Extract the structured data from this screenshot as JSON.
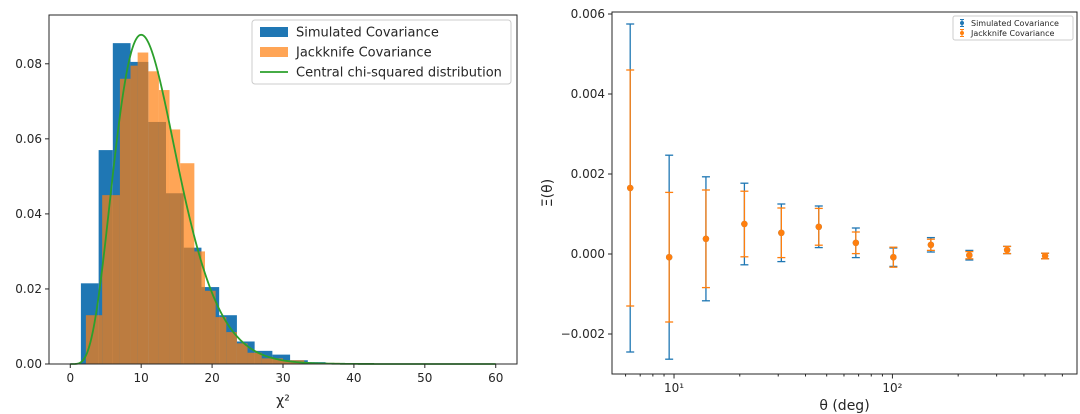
{
  "colors": {
    "simulated": "#1f77b4",
    "jackknife": "#ff7f0e",
    "chi2": "#2ca02c",
    "axis": "#262626"
  },
  "chart_data": [
    {
      "type": "bar",
      "subtype": "histogram",
      "xlabel": "χ²",
      "ylabel": "",
      "xlim": [
        -3,
        63
      ],
      "ylim": [
        0,
        0.093
      ],
      "x_ticks": [
        0,
        10,
        20,
        30,
        40,
        50,
        60
      ],
      "y_ticks": [
        0.0,
        0.02,
        0.04,
        0.06,
        0.08
      ],
      "y_tick_labels": [
        "0.00",
        "0.02",
        "0.04",
        "0.06",
        "0.08"
      ],
      "legend_position": "top-right",
      "legend": [
        "Simulated Covariance",
        "Jackknife Covariance",
        "Central chi-squared distribution"
      ],
      "series": [
        {
          "name": "Simulated Covariance",
          "type": "histogram",
          "bin_edges": [
            1.5,
            4.0,
            6.0,
            8.5,
            11.0,
            13.5,
            16.0,
            18.5,
            21.0,
            23.5,
            26.0,
            28.5,
            31.0,
            33.5,
            36.0,
            38.5
          ],
          "values": [
            0.0215,
            0.057,
            0.0855,
            0.0805,
            0.0645,
            0.0455,
            0.031,
            0.0205,
            0.013,
            0.006,
            0.0035,
            0.0025,
            0.001,
            0.0005,
            0.0002
          ]
        },
        {
          "name": "Jackknife Covariance",
          "type": "histogram",
          "bin_edges": [
            2.2,
            4.5,
            7.0,
            8.5,
            9.5,
            11.0,
            12.5,
            14.0,
            15.5,
            17.5,
            19.0,
            20.5,
            22.0,
            23.5,
            25.0,
            27.0,
            30.0,
            33.0,
            38.0
          ],
          "values": [
            0.013,
            0.045,
            0.076,
            0.0795,
            0.083,
            0.078,
            0.073,
            0.0625,
            0.0535,
            0.03,
            0.0195,
            0.0125,
            0.0085,
            0.0055,
            0.003,
            0.0015,
            0.001,
            0.0003
          ]
        },
        {
          "name": "Central chi-squared distribution",
          "type": "line",
          "dof": 12,
          "x_range": [
            0,
            60
          ]
        }
      ]
    },
    {
      "type": "scatter",
      "subtype": "errorbar",
      "xlabel": "θ (deg)",
      "ylabel": "Ξ(θ)",
      "x_scale": "log",
      "xlim": [
        5.2,
        700
      ],
      "ylim": [
        -0.003,
        0.00605
      ],
      "x_ticks": [
        10,
        100
      ],
      "x_tick_labels": [
        "10¹",
        "10²"
      ],
      "y_ticks": [
        -0.002,
        0.0,
        0.002,
        0.004,
        0.006
      ],
      "y_tick_labels": [
        "−0.002",
        "0.000",
        "0.002",
        "0.004",
        "0.006"
      ],
      "legend_position": "top-right",
      "legend": [
        "Simulated Covariance",
        "Jackknife Covariance"
      ],
      "x": [
        6.3,
        9.5,
        14.0,
        21.0,
        31.0,
        46.0,
        68.0,
        101.0,
        150.0,
        225.0,
        335.0,
        500.0
      ],
      "series": [
        {
          "name": "Simulated Covariance",
          "y": [
            0.00165,
            -8e-05,
            0.00038,
            0.00075,
            0.00053,
            0.00068,
            0.00028,
            -8e-05,
            0.00023,
            -3e-05,
            0.0001,
            -5e-05
          ],
          "err": [
            0.0041,
            0.00255,
            0.00155,
            0.00102,
            0.00072,
            0.00052,
            0.00037,
            0.00023,
            0.00018,
            0.00012,
            9e-05,
            7e-05
          ]
        },
        {
          "name": "Jackknife Covariance",
          "y": [
            0.00165,
            -8e-05,
            0.00038,
            0.00075,
            0.00053,
            0.00068,
            0.00028,
            -8e-05,
            0.00023,
            -3e-05,
            0.0001,
            -5e-05
          ],
          "err": [
            0.00295,
            0.00162,
            0.00122,
            0.00082,
            0.00062,
            0.00046,
            0.00027,
            0.00025,
            0.00014,
            9e-05,
            9e-05,
            7e-05
          ]
        }
      ]
    }
  ]
}
